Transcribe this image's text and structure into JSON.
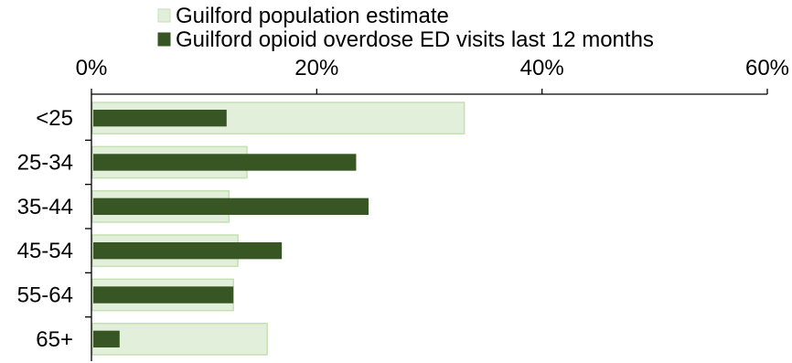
{
  "chart_data": {
    "type": "bar",
    "orientation": "horizontal",
    "categories": [
      "<25",
      "25-34",
      "35-44",
      "45-54",
      "55-64",
      "65+"
    ],
    "series": [
      {
        "name": "Guilford population estimate",
        "values": [
          33.1,
          13.8,
          12.2,
          13.0,
          12.6,
          15.6
        ],
        "color": "#e2efda",
        "border_color": "#c6e0b4"
      },
      {
        "name": "Guilford opioid overdose ED visits last 12 months",
        "values": [
          12.0,
          23.5,
          24.6,
          16.9,
          12.6,
          2.5
        ],
        "color": "#375623"
      }
    ],
    "xlim": [
      0,
      60
    ],
    "xticks": [
      "0%",
      "20%",
      "40%",
      "60%"
    ],
    "xtick_values": [
      0,
      20,
      40,
      60
    ],
    "axis_position": "top",
    "legend_position": "top",
    "grid": false
  }
}
